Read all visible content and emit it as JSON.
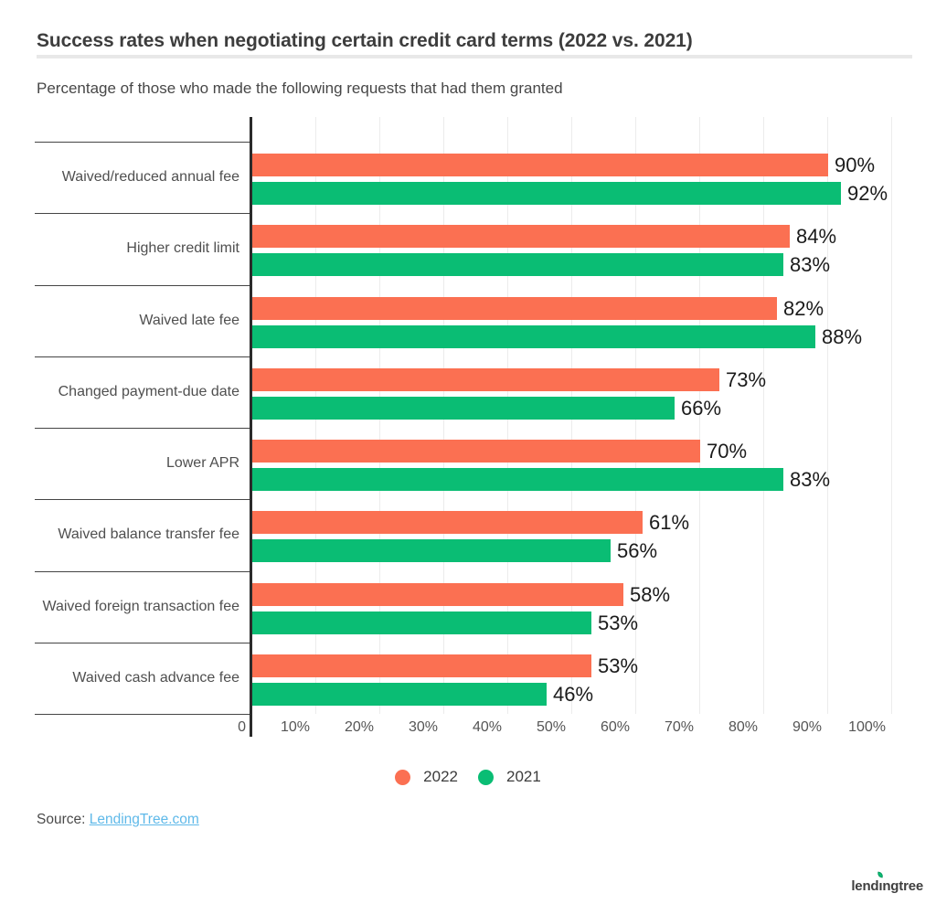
{
  "header": {
    "title": "Success rates when negotiating certain credit card terms (2022 vs. 2021)",
    "subtitle": "Percentage of those who made the following requests that had them granted"
  },
  "chart_data": {
    "type": "bar",
    "orientation": "horizontal",
    "title": "Success rates when negotiating certain credit card terms (2022 vs. 2021)",
    "subtitle": "Percentage of those who made the following requests that had them granted",
    "categories": [
      "Waived/reduced annual fee",
      "Higher credit limit",
      "Waived late fee",
      "Changed payment-due date",
      "Lower APR",
      "Waived balance transfer fee",
      "Waived foreign transaction fee",
      "Waived cash advance fee"
    ],
    "series": [
      {
        "name": "2022",
        "color": "#fb7052",
        "values": [
          90,
          84,
          82,
          73,
          70,
          61,
          58,
          53
        ]
      },
      {
        "name": "2021",
        "color": "#0abd74",
        "values": [
          92,
          83,
          88,
          66,
          83,
          56,
          53,
          46
        ]
      }
    ],
    "value_suffix": "%",
    "xlim": [
      0,
      100
    ],
    "x_ticks": [
      {
        "value": 0,
        "label": "0"
      },
      {
        "value": 10,
        "label": "10%"
      },
      {
        "value": 20,
        "label": "20%"
      },
      {
        "value": 30,
        "label": "30%"
      },
      {
        "value": 40,
        "label": "40%"
      },
      {
        "value": 50,
        "label": "50%"
      },
      {
        "value": 60,
        "label": "60%"
      },
      {
        "value": 70,
        "label": "70%"
      },
      {
        "value": 80,
        "label": "80%"
      },
      {
        "value": 90,
        "label": "90%"
      },
      {
        "value": 100,
        "label": "100%"
      }
    ],
    "grid": true,
    "legend_position": "bottom"
  },
  "legend": {
    "items": [
      {
        "label": "2022",
        "color": "#fb7052"
      },
      {
        "label": "2021",
        "color": "#0abd74"
      }
    ]
  },
  "source": {
    "prefix": "Source: ",
    "link_label": "LendingTree.com"
  },
  "logo": {
    "part1": "lend",
    "dotless_i": "ı",
    "part2": "ngtree",
    "leaf_color": "#0abd74"
  },
  "colors": {
    "series_2022": "#fb7052",
    "series_2021": "#0abd74",
    "axis": "#2b2b2b",
    "gridline": "#ececec",
    "link": "#5fb9e9"
  }
}
